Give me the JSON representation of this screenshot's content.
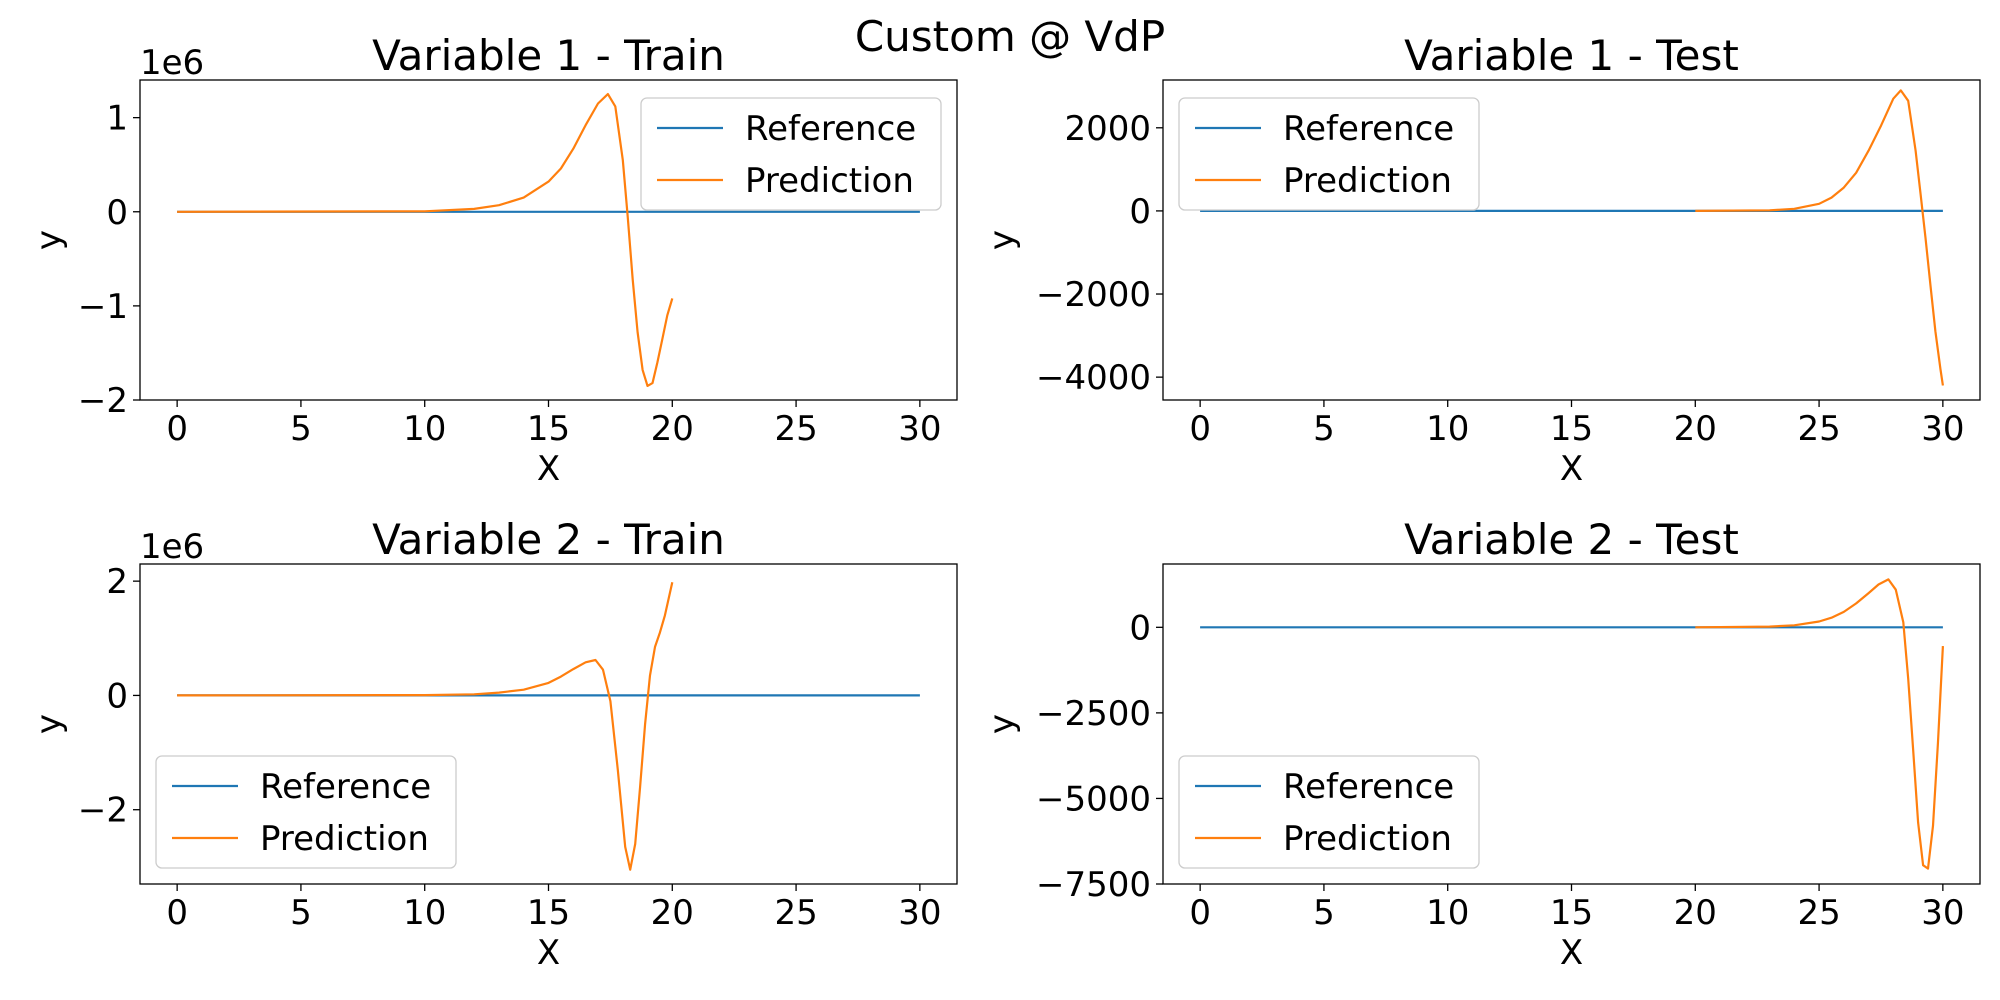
{
  "figure": {
    "title": "Custom @ VdP"
  },
  "colors": {
    "reference": "#1f77b4",
    "prediction": "#ff7f0e",
    "axis": "#000000",
    "legend_border": "#cccccc"
  },
  "chart_data": [
    {
      "type": "line",
      "title": "Variable 1 - Train",
      "xlabel": "X",
      "ylabel": "y",
      "offset_text": "1e6",
      "xlim": [
        -1.5,
        31.5
      ],
      "ylim": [
        -2.0,
        1.4
      ],
      "xticks": [
        0,
        5,
        10,
        15,
        20,
        25,
        30
      ],
      "xtick_labels": [
        "0",
        "5",
        "10",
        "15",
        "20",
        "25",
        "30"
      ],
      "yticks": [
        -2,
        -1,
        0,
        1
      ],
      "ytick_labels": [
        "−2",
        "−1",
        "0",
        "1"
      ],
      "legend": {
        "position": "upper right",
        "entries": [
          "Reference",
          "Prediction"
        ]
      },
      "series": [
        {
          "name": "Reference",
          "color": "#1f77b4",
          "x": [
            0,
            30
          ],
          "y": [
            0,
            0
          ]
        },
        {
          "name": "Prediction",
          "color": "#ff7f0e",
          "x": [
            0,
            10,
            12,
            13,
            14,
            15,
            15.5,
            16,
            16.5,
            17,
            17.4,
            17.7,
            18,
            18.2,
            18.4,
            18.6,
            18.8,
            19,
            19.2,
            19.4,
            19.6,
            19.8,
            20
          ],
          "y": [
            0,
            0.005,
            0.03,
            0.07,
            0.15,
            0.32,
            0.46,
            0.67,
            0.92,
            1.15,
            1.25,
            1.12,
            0.55,
            -0.05,
            -0.72,
            -1.28,
            -1.68,
            -1.85,
            -1.82,
            -1.6,
            -1.35,
            -1.1,
            -0.92
          ]
        }
      ]
    },
    {
      "type": "line",
      "title": "Variable 1 - Test",
      "xlabel": "X",
      "ylabel": "y",
      "offset_text": "",
      "xlim": [
        -1.5,
        31.5
      ],
      "ylim": [
        -4550,
        3150
      ],
      "xticks": [
        0,
        5,
        10,
        15,
        20,
        25,
        30
      ],
      "xtick_labels": [
        "0",
        "5",
        "10",
        "15",
        "20",
        "25",
        "30"
      ],
      "yticks": [
        -4000,
        -2000,
        0,
        2000
      ],
      "ytick_labels": [
        "−4000",
        "−2000",
        "0",
        "2000"
      ],
      "legend": {
        "position": "upper left",
        "entries": [
          "Reference",
          "Prediction"
        ]
      },
      "series": [
        {
          "name": "Reference",
          "color": "#1f77b4",
          "x": [
            0,
            30
          ],
          "y": [
            0,
            0
          ]
        },
        {
          "name": "Prediction",
          "color": "#ff7f0e",
          "x": [
            20,
            23,
            24,
            25,
            25.5,
            26,
            26.5,
            27,
            27.5,
            28,
            28.3,
            28.6,
            28.9,
            29.1,
            29.3,
            29.5,
            29.7,
            29.9,
            30
          ],
          "y": [
            0,
            15,
            50,
            170,
            320,
            560,
            920,
            1450,
            2050,
            2700,
            2900,
            2650,
            1450,
            400,
            -650,
            -1800,
            -2900,
            -3800,
            -4200
          ]
        }
      ]
    },
    {
      "type": "line",
      "title": "Variable 2 - Train",
      "xlabel": "X",
      "ylabel": "y",
      "offset_text": "1e6",
      "xlim": [
        -1.5,
        31.5
      ],
      "ylim": [
        -3.3,
        2.3
      ],
      "xticks": [
        0,
        5,
        10,
        15,
        20,
        25,
        30
      ],
      "xtick_labels": [
        "0",
        "5",
        "10",
        "15",
        "20",
        "25",
        "30"
      ],
      "yticks": [
        -2,
        0,
        2
      ],
      "ytick_labels": [
        "−2",
        "0",
        "2"
      ],
      "legend": {
        "position": "lower left",
        "entries": [
          "Reference",
          "Prediction"
        ]
      },
      "series": [
        {
          "name": "Reference",
          "color": "#1f77b4",
          "x": [
            0,
            30
          ],
          "y": [
            0,
            0
          ]
        },
        {
          "name": "Prediction",
          "color": "#ff7f0e",
          "x": [
            0,
            10,
            12,
            13,
            14,
            15,
            15.5,
            16,
            16.5,
            16.9,
            17.2,
            17.5,
            17.8,
            18.1,
            18.3,
            18.5,
            18.7,
            18.9,
            19.1,
            19.3,
            19.5,
            19.7,
            20
          ],
          "y": [
            0,
            0.005,
            0.02,
            0.05,
            0.1,
            0.22,
            0.33,
            0.46,
            0.58,
            0.62,
            0.45,
            -0.1,
            -1.3,
            -2.65,
            -3.05,
            -2.6,
            -1.6,
            -0.5,
            0.35,
            0.85,
            1.1,
            1.4,
            1.98
          ]
        }
      ]
    },
    {
      "type": "line",
      "title": "Variable 2 - Test",
      "xlabel": "X",
      "ylabel": "y",
      "offset_text": "",
      "xlim": [
        -1.5,
        31.5
      ],
      "ylim": [
        -7500,
        1850
      ],
      "xticks": [
        0,
        5,
        10,
        15,
        20,
        25,
        30
      ],
      "xtick_labels": [
        "0",
        "5",
        "10",
        "15",
        "20",
        "25",
        "30"
      ],
      "yticks": [
        -7500,
        -5000,
        -2500,
        0
      ],
      "ytick_labels": [
        "−7500",
        "−5000",
        "−2500",
        "0"
      ],
      "legend": {
        "position": "lower left",
        "entries": [
          "Reference",
          "Prediction"
        ]
      },
      "series": [
        {
          "name": "Reference",
          "color": "#1f77b4",
          "x": [
            0,
            30
          ],
          "y": [
            0,
            0
          ]
        },
        {
          "name": "Prediction",
          "color": "#ff7f0e",
          "x": [
            20,
            23,
            24,
            25,
            25.5,
            26,
            26.5,
            27,
            27.4,
            27.8,
            28.1,
            28.4,
            28.6,
            28.8,
            29,
            29.2,
            29.4,
            29.6,
            29.8,
            30
          ],
          "y": [
            0,
            20,
            60,
            170,
            280,
            450,
            700,
            1000,
            1250,
            1400,
            1100,
            150,
            -1500,
            -3600,
            -5700,
            -6950,
            -7050,
            -5800,
            -3400,
            -550
          ]
        }
      ]
    }
  ]
}
